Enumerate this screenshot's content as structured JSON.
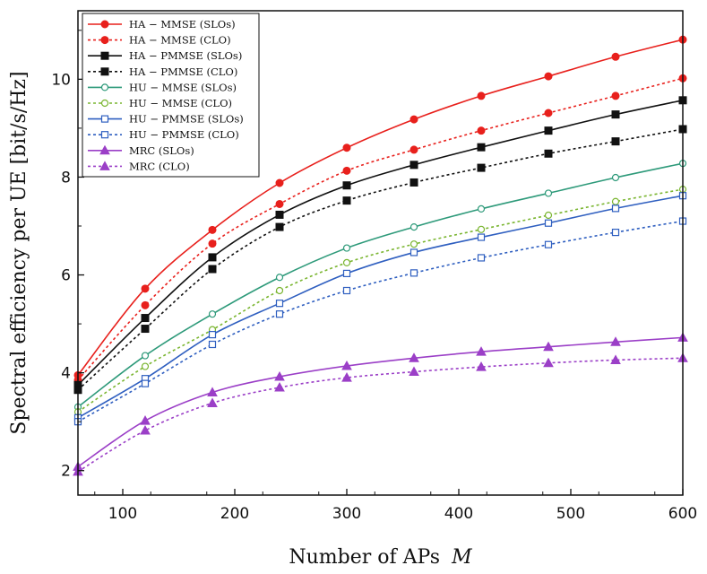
{
  "chart_data": {
    "type": "line",
    "title": "",
    "xlabel": "Number of APs",
    "xlabel_var": "M",
    "ylabel": "Spectral efficiency per UE [bit/s/Hz]",
    "xlim": [
      60,
      600
    ],
    "ylim": [
      1.5,
      11.4
    ],
    "xticks": [
      100,
      200,
      300,
      400,
      500,
      600
    ],
    "yticks": [
      2,
      4,
      6,
      8,
      10
    ],
    "x": [
      60,
      120,
      180,
      240,
      300,
      360,
      420,
      480,
      540,
      600
    ],
    "legend_position": "top-left",
    "series": [
      {
        "name": "HA − MMSE (SLOs)",
        "color": "#e8201c",
        "dash": "solid",
        "marker": "circle",
        "filled": true,
        "values": [
          3.95,
          5.72,
          6.92,
          7.88,
          8.6,
          9.18,
          9.66,
          10.06,
          10.46,
          10.81
        ]
      },
      {
        "name": "HA − MMSE (CLO)",
        "color": "#e8201c",
        "dash": "dotted",
        "marker": "circle",
        "filled": true,
        "values": [
          3.85,
          5.38,
          6.64,
          7.45,
          8.13,
          8.56,
          8.95,
          9.31,
          9.66,
          10.02
        ]
      },
      {
        "name": "HA − PMMSE (SLOs)",
        "color": "#111111",
        "dash": "solid",
        "marker": "square",
        "filled": true,
        "values": [
          3.75,
          5.12,
          6.36,
          7.23,
          7.83,
          8.25,
          8.61,
          8.95,
          9.28,
          9.57
        ]
      },
      {
        "name": "HA − PMMSE (CLO)",
        "color": "#111111",
        "dash": "dotted",
        "marker": "square",
        "filled": true,
        "values": [
          3.65,
          4.9,
          6.12,
          6.98,
          7.52,
          7.89,
          8.19,
          8.48,
          8.73,
          8.98
        ]
      },
      {
        "name": "HU − MMSE (SLOs)",
        "color": "#2e9a7a",
        "dash": "solid",
        "marker": "circle",
        "filled": false,
        "values": [
          3.3,
          4.35,
          5.2,
          5.95,
          6.55,
          6.98,
          7.35,
          7.67,
          7.99,
          8.28
        ]
      },
      {
        "name": "HU − MMSE (CLO)",
        "color": "#7ab530",
        "dash": "dotted",
        "marker": "circle",
        "filled": false,
        "values": [
          3.2,
          4.13,
          4.88,
          5.68,
          6.25,
          6.63,
          6.93,
          7.22,
          7.5,
          7.75
        ]
      },
      {
        "name": "HU − PMMSE (SLOs)",
        "color": "#2f5fc0",
        "dash": "solid",
        "marker": "square",
        "filled": false,
        "values": [
          3.08,
          3.88,
          4.78,
          5.42,
          6.03,
          6.46,
          6.77,
          7.06,
          7.36,
          7.62
        ]
      },
      {
        "name": "HU − PMMSE (CLO)",
        "color": "#2f5fc0",
        "dash": "dotted",
        "marker": "square",
        "filled": false,
        "values": [
          3.0,
          3.78,
          4.58,
          5.2,
          5.68,
          6.04,
          6.35,
          6.62,
          6.87,
          7.1
        ]
      },
      {
        "name": "MRC (SLOs)",
        "color": "#9b3fc7",
        "dash": "solid",
        "marker": "triangle",
        "filled": true,
        "values": [
          2.08,
          3.02,
          3.6,
          3.92,
          4.14,
          4.3,
          4.43,
          4.53,
          4.63,
          4.72
        ]
      },
      {
        "name": "MRC (CLO)",
        "color": "#9b3fc7",
        "dash": "dotted",
        "marker": "triangle",
        "filled": true,
        "values": [
          1.98,
          2.82,
          3.38,
          3.7,
          3.9,
          4.02,
          4.12,
          4.2,
          4.26,
          4.3
        ]
      }
    ]
  }
}
